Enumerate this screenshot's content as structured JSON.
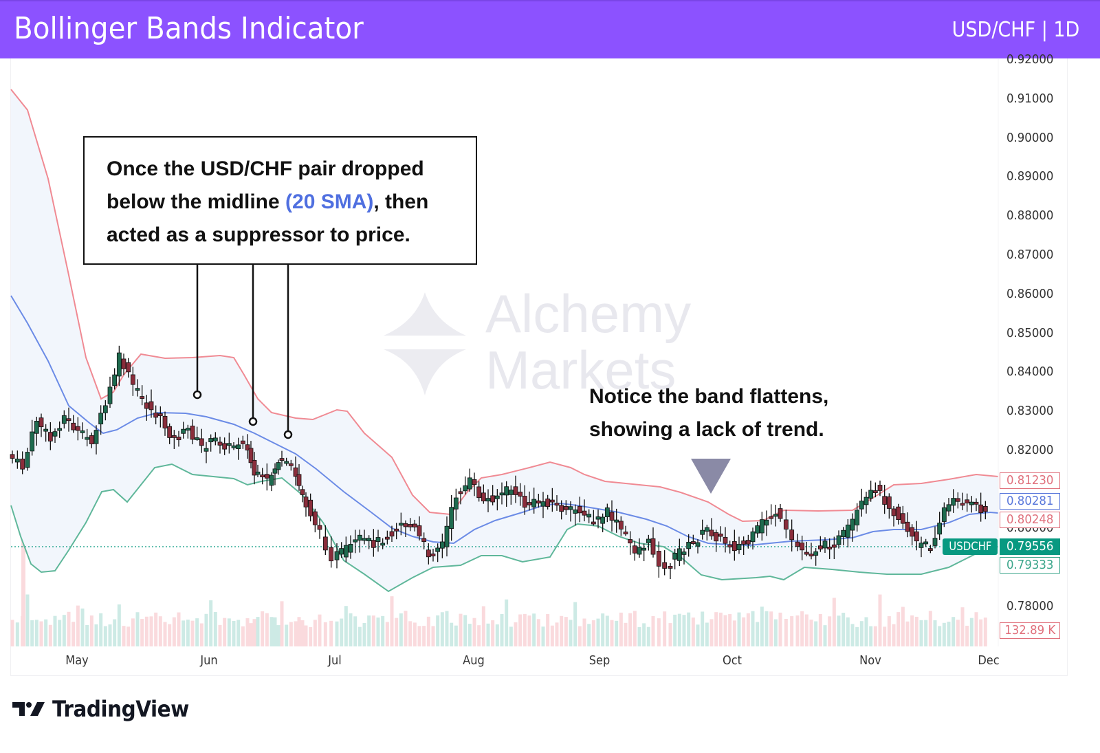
{
  "header": {
    "title": "Bollinger Bands Indicator",
    "symbol": "USD/CHF | 1D",
    "background": "#8c52ff"
  },
  "annotations": {
    "callout_line1": "Once the USD/CHF pair dropped",
    "callout_line2_pre": "below the midline ",
    "callout_line2_hl": "(20 SMA)",
    "callout_line2_post": ", then",
    "callout_line3": "acted as a suppressor to price.",
    "note_line1": "Notice the band flattens,",
    "note_line2": "showing a lack of trend."
  },
  "watermark": {
    "line1": "Alchemy",
    "line2": "Markets"
  },
  "price_tags": {
    "upper": "0.81230",
    "middle": "0.80281",
    "open": "0.80248",
    "last": "0.79556",
    "lower": "0.79333",
    "volume": "132.89 K",
    "symbol": "USDCHF"
  },
  "footer": {
    "brand": "TradingView"
  },
  "colors": {
    "upper_band": "#f08a93",
    "middle_band": "#6b8be6",
    "lower_band": "#5fb79a",
    "band_fill": "#f2f6fc",
    "bull_candle": "#1e6b4f",
    "bear_candle": "#8a2d3b",
    "vol_bull": "#cdeae5",
    "vol_bear": "#fadadd",
    "last_price": "#089981",
    "arrow": "#8a8aa6"
  },
  "chart_data": {
    "type": "candlestick",
    "title": "Bollinger Bands Indicator",
    "symbol": "USD/CHF",
    "timeframe": "1D",
    "xlabel": "",
    "ylabel": "",
    "ylim": [
      0.78,
      0.92
    ],
    "y_ticks": [
      "0.92000",
      "0.91000",
      "0.90000",
      "0.89000",
      "0.88000",
      "0.87000",
      "0.86000",
      "0.85000",
      "0.84000",
      "0.83000",
      "0.82000",
      "0.80000",
      "0.78000"
    ],
    "x_ticks": [
      "May",
      "Jun",
      "Jul",
      "Aug",
      "Sep",
      "Oct",
      "Nov",
      "Dec"
    ],
    "indicator": "Bollinger Bands (20 SMA)",
    "last_values": {
      "upper": 0.8123,
      "middle": 0.80281,
      "lower": 0.79333,
      "close": 0.79556,
      "volume": "132.89K"
    },
    "series": [
      {
        "name": "Upper Band",
        "x": [
          "Apr-end",
          "May-mid",
          "May-end",
          "Jun-mid",
          "Jun-end",
          "Jul-mid",
          "Jul-end",
          "Aug-mid",
          "Sep-start",
          "Sep-mid",
          "Oct-start",
          "Oct-mid",
          "Nov-start",
          "Nov-mid",
          "Dec-start"
        ],
        "values": [
          0.913,
          0.833,
          0.8445,
          0.8445,
          0.8285,
          0.8305,
          0.8175,
          0.817,
          0.8158,
          0.8148,
          0.8145,
          0.81,
          0.8135,
          0.8125,
          0.8123
        ]
      },
      {
        "name": "Middle Band (20 SMA)",
        "x": [
          "Apr-end",
          "May-mid",
          "May-end",
          "Jun-mid",
          "Jun-end",
          "Jul-mid",
          "Jul-end",
          "Aug-mid",
          "Sep-start",
          "Sep-mid",
          "Oct-start",
          "Oct-mid",
          "Nov-start",
          "Nov-mid",
          "Dec-start"
        ],
        "values": [
          0.86,
          0.8215,
          0.8295,
          0.8265,
          0.8205,
          0.805,
          0.7965,
          0.8022,
          0.8035,
          0.801,
          0.796,
          0.7972,
          0.7975,
          0.799,
          0.8028
        ]
      },
      {
        "name": "Lower Band",
        "x": [
          "Apr-end",
          "May-mid",
          "May-end",
          "Jun-mid",
          "Jun-end",
          "Jul-mid",
          "Jul-end",
          "Aug-mid",
          "Sep-start",
          "Sep-mid",
          "Oct-start",
          "Oct-mid",
          "Nov-start",
          "Nov-mid",
          "Dec-start"
        ],
        "values": [
          0.806,
          0.79,
          0.817,
          0.8148,
          0.81,
          0.787,
          0.792,
          0.7908,
          0.8,
          0.7935,
          0.7905,
          0.7915,
          0.791,
          0.7918,
          0.7933
        ]
      },
      {
        "name": "Close (approx.)",
        "x": [
          "May-start",
          "May-mid",
          "May-end",
          "Jun-mid",
          "Jun-end",
          "Jul-mid",
          "Jul-end",
          "Aug-start",
          "Aug-mid",
          "Sep-start",
          "Sep-mid",
          "Oct-start",
          "Oct-mid",
          "Nov-start",
          "Nov-mid",
          "Dec-start"
        ],
        "values": [
          0.818,
          0.8445,
          0.826,
          0.822,
          0.816,
          0.7955,
          0.797,
          0.8135,
          0.8045,
          0.801,
          0.788,
          0.7975,
          0.804,
          0.796,
          0.8095,
          0.79556
        ]
      }
    ],
    "annotations": [
      "Once the USD/CHF pair dropped below the midline (20 SMA), then acted as a suppressor to price.",
      "Notice the band flattens, showing a lack of trend."
    ],
    "grid": false
  }
}
